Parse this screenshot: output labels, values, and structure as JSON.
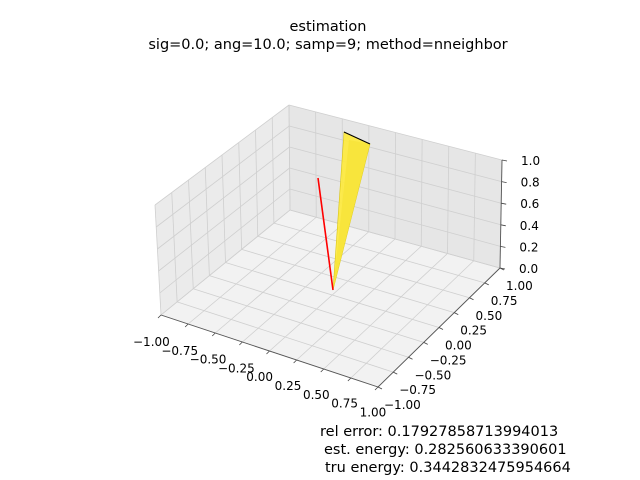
{
  "figure": {
    "title_line1": "estimation",
    "title_line2": "sig=0.0; ang=10.0; samp=9; method=nneighbor",
    "annotations": [
      "rel error: 0.17927858713994013",
      "est. energy: 0.282560633390601",
      "tru energy: 0.3442832475954664"
    ]
  },
  "chart_data": {
    "type": "3d",
    "title": "estimation\nsig=0.0; ang=10.0; samp=9; method=nneighbor",
    "xlim": [
      -1.0,
      1.0
    ],
    "ylim": [
      -1.0,
      1.0
    ],
    "zlim": [
      0.0,
      1.0
    ],
    "x_ticks": [
      "−1.00",
      "−0.75",
      "−0.50",
      "−0.25",
      "0.00",
      "0.25",
      "0.50",
      "0.75",
      "1.00"
    ],
    "y_ticks": [
      "−1.00",
      "−0.75",
      "−0.50",
      "−0.25",
      "0.00",
      "0.25",
      "0.50",
      "0.75",
      "1.00"
    ],
    "z_ticks": [
      "0.0",
      "0.2",
      "0.4",
      "0.6",
      "0.8",
      "1.0"
    ],
    "grid": true,
    "line": {
      "color": "#ff0000",
      "points": [
        [
          0.0,
          0.0,
          0.0
        ],
        [
          -0.2,
          -0.05,
          0.88
        ]
      ]
    },
    "surface": {
      "color": "#ffeb3b",
      "edge_color": "#000000",
      "apex": [
        0.0,
        0.0,
        0.0
      ],
      "top": [
        [
          0.08,
          0.08,
          1.0
        ],
        [
          0.12,
          0.22,
          0.99
        ]
      ]
    }
  }
}
